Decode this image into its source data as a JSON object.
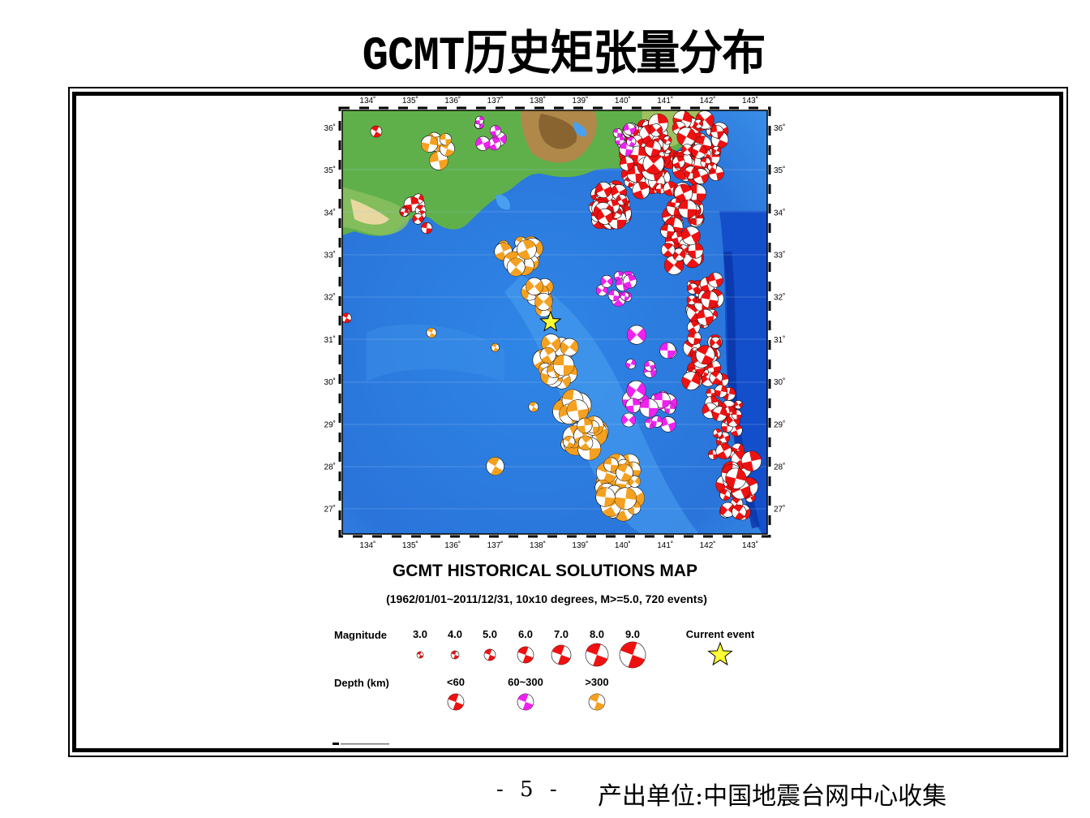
{
  "slide": {
    "title": "GCMT历史矩张量分布",
    "page_number": "- 5 -",
    "source": "产出单位:中国地震台网中心收集"
  },
  "map": {
    "title": "GCMT HISTORICAL SOLUTIONS MAP",
    "subtitle": "(1962/01/01~2011/12/31, 10x10 degrees, M>=5.0, 720 events)",
    "lon_ticks": [
      "134˚",
      "135˚",
      "136˚",
      "137˚",
      "138˚",
      "139˚",
      "140˚",
      "141˚",
      "142˚",
      "143˚"
    ],
    "lat_ticks": [
      "36˚",
      "35˚",
      "34˚",
      "33˚",
      "32˚",
      "31˚",
      "30˚",
      "29˚",
      "28˚",
      "27˚"
    ],
    "lon_range": [
      133.4,
      143.4
    ],
    "lat_range": [
      26.4,
      36.4
    ],
    "current_event": {
      "lon": 138.3,
      "lat": 31.4,
      "color": "#ffff33"
    },
    "colors": {
      "ocean": "#2f7ee0",
      "trench": "#0a3cc8",
      "land_low": "#5fb04a",
      "land_high": "#a07a3c",
      "shallow": "#ee1111",
      "intermediate": "#ee22ee",
      "deep": "#f4a020"
    }
  },
  "legend": {
    "magnitude_label": "Magnitude",
    "magnitudes": [
      "3.0",
      "4.0",
      "5.0",
      "6.0",
      "7.0",
      "8.0",
      "9.0"
    ],
    "current_event_label": "Current event",
    "depth_label": "Depth (km)",
    "depths": [
      "<60",
      "60~300",
      ">300"
    ]
  }
}
